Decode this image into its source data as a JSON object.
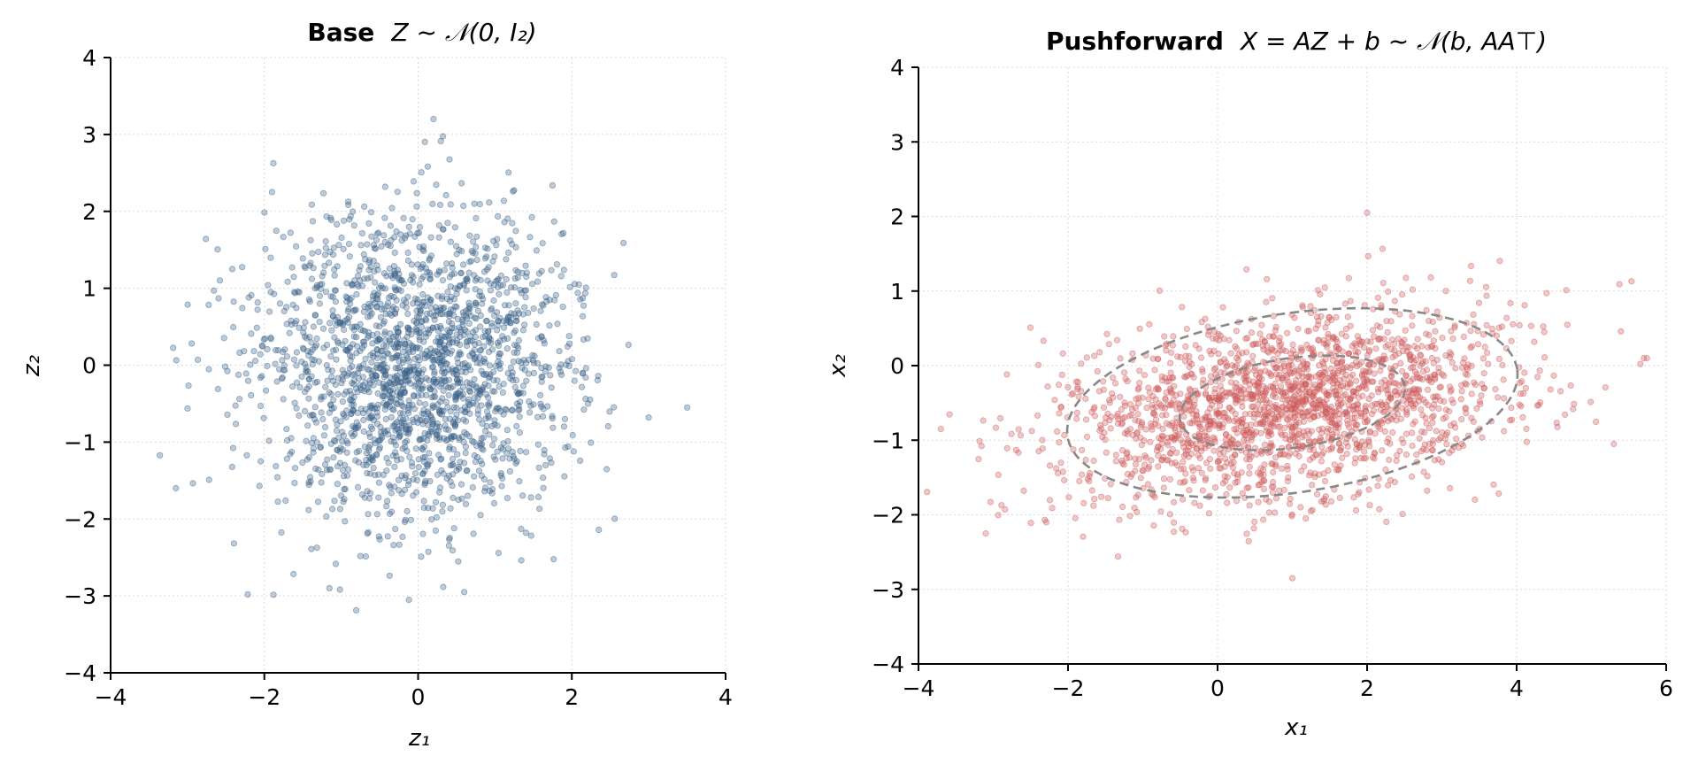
{
  "colors": {
    "base_points": "#3b6188",
    "pushforward_points": "#cd5b5b",
    "contour": "#888888",
    "grid": "#d9d9d9",
    "axis": "#000000"
  },
  "chart_data": [
    {
      "type": "scatter",
      "title_bold": "Base",
      "title_math": "Z ~ 𝒩(0, I₂)",
      "xlabel": "z₁",
      "ylabel": "z₂",
      "xlim": [
        -4,
        4
      ],
      "ylim": [
        -4,
        4
      ],
      "xticks": [
        "−4",
        "−2",
        "0",
        "2",
        "4"
      ],
      "yticks": [
        "−4",
        "−3",
        "−2",
        "−1",
        "0",
        "1",
        "2",
        "3",
        "4"
      ],
      "grid": true,
      "point_color": "#3b6188",
      "n_points": 2000,
      "distribution": {
        "mean": [
          0,
          0
        ],
        "cov": [
          [
            1,
            0
          ],
          [
            0,
            1
          ]
        ]
      },
      "notable_points": [
        [
          0.2,
          3.2
        ],
        [
          3.5,
          -0.55
        ],
        [
          -3.15,
          -1.6
        ],
        [
          0.6,
          -2.95
        ],
        [
          -1.9,
          2.25
        ],
        [
          3.0,
          -0.68
        ]
      ]
    },
    {
      "type": "scatter",
      "title_bold": "Pushforward",
      "title_math": "X = AZ + b ~ 𝒩(b, AA⊤)",
      "xlabel": "x₁",
      "ylabel": "x₂",
      "xlim": [
        -4,
        6
      ],
      "ylim": [
        -4,
        4
      ],
      "xticks": [
        "−4",
        "−2",
        "0",
        "2",
        "4",
        "6"
      ],
      "yticks": [
        "−4",
        "−3",
        "−2",
        "−1",
        "0",
        "1",
        "2",
        "3",
        "4"
      ],
      "grid": true,
      "point_color": "#cd5b5b",
      "n_points": 2000,
      "distribution": {
        "mean": [
          1.0,
          -0.5
        ],
        "cov": [
          [
            2.25,
            0.3
          ],
          [
            0.3,
            0.4
          ]
        ]
      },
      "contours": [
        {
          "level": "1σ",
          "center": [
            1.0,
            -0.5
          ],
          "semi_axes": [
            1.52,
            0.6
          ],
          "angle_deg": 8.5
        },
        {
          "level": "2σ",
          "center": [
            1.0,
            -0.5
          ],
          "semi_axes": [
            3.04,
            1.2
          ],
          "angle_deg": 8.5
        }
      ],
      "notable_points": [
        [
          5.7,
          0.1
        ],
        [
          -3.7,
          -0.85
        ],
        [
          2.0,
          2.05
        ],
        [
          1.0,
          -2.85
        ],
        [
          5.3,
          -1.05
        ],
        [
          -3.1,
          -2.25
        ]
      ]
    }
  ]
}
